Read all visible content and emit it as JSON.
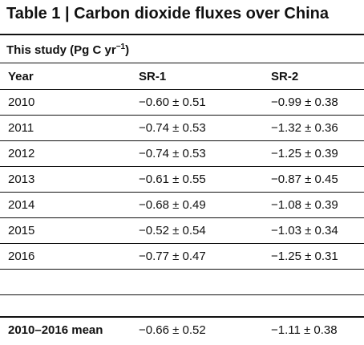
{
  "table": {
    "title": "Table 1 | Carbon dioxide fluxes over China",
    "section_label": "This study (Pg C yr",
    "section_unit_exp": "−1",
    "section_label_close": ")",
    "columns": [
      "Year",
      "SR-1",
      "SR-2"
    ],
    "rows": [
      {
        "year": "2010",
        "sr1": "−0.60 ± 0.51",
        "sr2": "−0.99 ± 0.38"
      },
      {
        "year": "2011",
        "sr1": "−0.74 ± 0.53",
        "sr2": "−1.32 ± 0.36"
      },
      {
        "year": "2012",
        "sr1": "−0.74 ± 0.53",
        "sr2": "−1.25 ± 0.39"
      },
      {
        "year": "2013",
        "sr1": "−0.61 ± 0.55",
        "sr2": "−0.87 ± 0.45"
      },
      {
        "year": "2014",
        "sr1": "−0.68 ± 0.49",
        "sr2": "−1.08 ± 0.39"
      },
      {
        "year": "2015",
        "sr1": "−0.52 ± 0.54",
        "sr2": "−1.03 ± 0.34"
      },
      {
        "year": "2016",
        "sr1": "−0.77 ± 0.47",
        "sr2": "−1.25 ± 0.31"
      }
    ],
    "mean": {
      "label": "2010–2016 mean",
      "sr1": "−0.66 ± 0.52",
      "sr2": "−1.11 ± 0.38"
    }
  }
}
